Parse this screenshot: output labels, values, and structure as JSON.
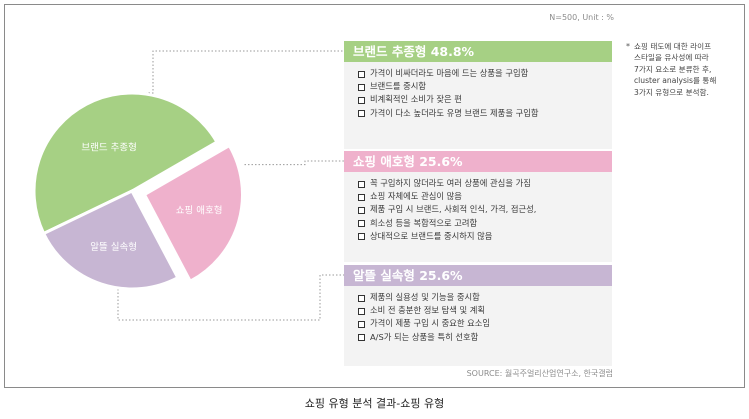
{
  "meta_note": "N=500, Unit : %",
  "chart_data": {
    "type": "pie",
    "slices": [
      {
        "label": "브랜드 추종형",
        "value": 48.8,
        "color": "#a6d084"
      },
      {
        "label": "쇼핑 애호형",
        "value": 25.6,
        "color": "#efb1cc"
      },
      {
        "label": "알뜰 실속형",
        "value": 25.6,
        "color": "#c7b6d3"
      }
    ],
    "exploded_slice": "쇼핑 애호형",
    "legend": "none"
  },
  "panels": [
    {
      "title": "브랜드 추종형 48.8%",
      "items": [
        "가격이 비싸더라도 마음에 드는 상품을 구입함",
        "브랜드를 중시함",
        "비계획적인 소비가 잦은 편",
        "가격이 다소 높더라도 유명 브랜드 제품을 구입함"
      ]
    },
    {
      "title": "쇼핑 애호형 25.6%",
      "items": [
        "꼭 구입하지 않더라도 여러 상품에 관심을 가짐",
        "쇼핑 자체에도 관심이 많음",
        "제품 구입 시 브랜드, 사회적 인식, 가격, 접근성,",
        "희소성 등을 복합적으로 고려함",
        "상대적으로 브랜드를 중시하지 않음"
      ]
    },
    {
      "title": "알뜰 실속형 25.6%",
      "items": [
        "제품의 실용성 및 기능을 중시함",
        "소비 전 충분한 정보 탐색 및 계획",
        "가격이 제품 구입 시 중요한 요소임",
        "A/S가 되는 상품을 특히 선호함"
      ]
    }
  ],
  "note": {
    "marker": "*",
    "lines": [
      "쇼핑 태도에 대한 라이프",
      "스타일을 유사성에 따라",
      "7가지 요소로 분류한 후,",
      "cluster analysis를 통해",
      "3가지 유형으로 분석함."
    ]
  },
  "source": "SOURCE: 월곡주얼리산업연구소, 한국갤럽",
  "caption": "쇼핑 유형 분석 결과-쇼핑 유형"
}
